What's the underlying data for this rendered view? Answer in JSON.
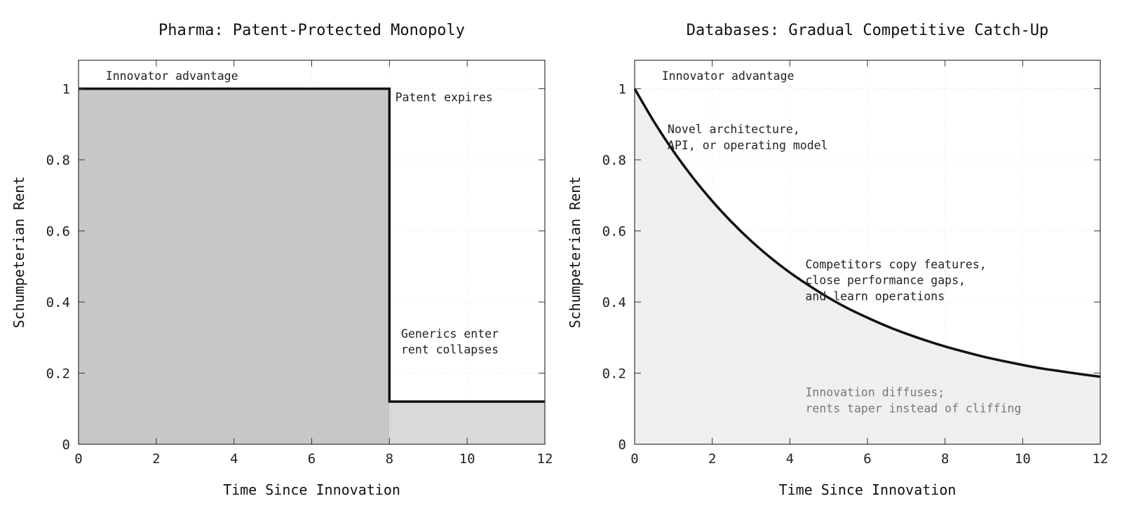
{
  "chart_data": [
    {
      "type": "area",
      "title": "Pharma: Patent-Protected Monopoly",
      "xlabel": "Time Since Innovation",
      "ylabel": "Schumpeterian Rent",
      "xlim": [
        0,
        12
      ],
      "ylim": [
        0,
        1.08
      ],
      "xticks": [
        0,
        2,
        4,
        6,
        8,
        10,
        12
      ],
      "xtick_labels": [
        "0",
        "2",
        "4",
        "6",
        "8",
        "10",
        "12"
      ],
      "yticks": [
        0,
        0.2,
        0.4,
        0.6,
        0.8,
        1
      ],
      "ytick_labels": [
        "0",
        "0.2",
        "0.4",
        "0.6",
        "0.8",
        "1"
      ],
      "grid": true,
      "series": [
        {
          "x": [
            0,
            8,
            8,
            12
          ],
          "y": [
            1,
            1,
            0.12,
            0.12
          ],
          "line_color": "#111111",
          "fill_segments": [
            {
              "x_range": [
                0,
                8
              ],
              "color": "#c7c7c7"
            },
            {
              "x_range": [
                8,
                12
              ],
              "color": "#d9d9d9"
            }
          ]
        }
      ],
      "annotations": [
        {
          "text": "Innovator advantage",
          "x": 0.7,
          "y": 1.025,
          "style": "dark"
        },
        {
          "text": "Patent expires",
          "x": 8.15,
          "y": 0.965,
          "style": "dark"
        },
        {
          "text": "Generics enter",
          "x": 8.3,
          "y": 0.3,
          "style": "dark"
        },
        {
          "text": "rent collapses",
          "x": 8.3,
          "y": 0.255,
          "style": "dark"
        }
      ]
    },
    {
      "type": "area",
      "title": "Databases: Gradual Competitive Catch-Up",
      "xlabel": "Time Since Innovation",
      "ylabel": "Schumpeterian Rent",
      "xlim": [
        0,
        12
      ],
      "ylim": [
        0,
        1.08
      ],
      "xticks": [
        0,
        2,
        4,
        6,
        8,
        10,
        12
      ],
      "xtick_labels": [
        "0",
        "2",
        "4",
        "6",
        "8",
        "10",
        "12"
      ],
      "yticks": [
        0,
        0.2,
        0.4,
        0.6,
        0.8,
        1
      ],
      "ytick_labels": [
        "0",
        "0.2",
        "0.4",
        "0.6",
        "0.8",
        "1"
      ],
      "grid": true,
      "series": [
        {
          "x": [
            0,
            0.5,
            1,
            1.5,
            2,
            2.5,
            3,
            3.5,
            4,
            4.5,
            5,
            5.5,
            6,
            6.5,
            7,
            7.5,
            8,
            8.5,
            9,
            9.5,
            10,
            10.5,
            11,
            11.5,
            12
          ],
          "y": [
            1.0,
            0.907,
            0.824,
            0.75,
            0.684,
            0.625,
            0.572,
            0.525,
            0.483,
            0.446,
            0.412,
            0.382,
            0.356,
            0.332,
            0.311,
            0.292,
            0.275,
            0.26,
            0.246,
            0.234,
            0.223,
            0.213,
            0.205,
            0.197,
            0.19
          ],
          "line_color": "#111111",
          "fill_color": "#efefef"
        }
      ],
      "annotations": [
        {
          "text": "Innovator advantage",
          "x": 0.7,
          "y": 1.025,
          "style": "dark"
        },
        {
          "text": "Novel architecture,",
          "x": 0.85,
          "y": 0.875,
          "style": "dark"
        },
        {
          "text": "API, or operating model",
          "x": 0.85,
          "y": 0.83,
          "style": "dark"
        },
        {
          "text": "Competitors copy features,",
          "x": 4.4,
          "y": 0.495,
          "style": "dark"
        },
        {
          "text": "close performance gaps,",
          "x": 4.4,
          "y": 0.45,
          "style": "dark"
        },
        {
          "text": "and learn operations",
          "x": 4.4,
          "y": 0.405,
          "style": "dark"
        },
        {
          "text": "Innovation diffuses;",
          "x": 4.4,
          "y": 0.135,
          "style": "gray"
        },
        {
          "text": "rents taper instead of cliffing",
          "x": 4.4,
          "y": 0.09,
          "style": "gray"
        }
      ]
    }
  ]
}
